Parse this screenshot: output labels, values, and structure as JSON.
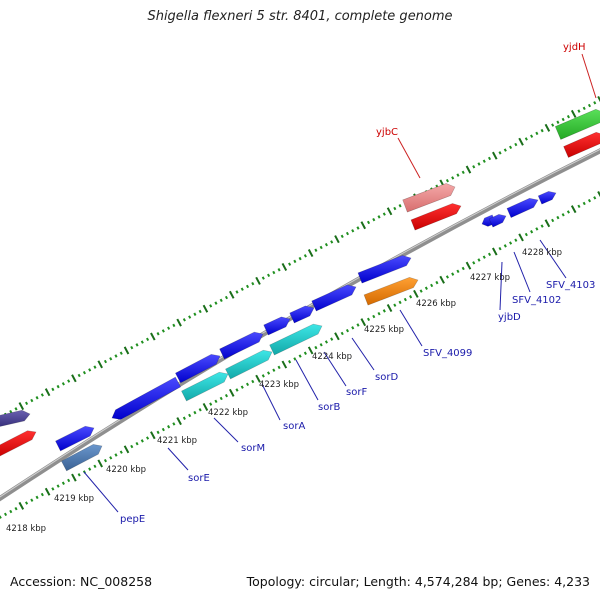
{
  "title": "Shigella flexneri 5 str. 8401, complete genome",
  "footer": {
    "accession": "Accession: NC_008258",
    "stats": "Topology: circular; Length: 4,574,284 bp; Genes: 4,233"
  },
  "colors": {
    "label_top": "#cc0000",
    "label_bottom": "#1a1aaa",
    "tick_dot": "#1f8f1f",
    "tick_major": "#1a6e1a",
    "backbone": "#8f8f8f",
    "callout_top": "#cc2222",
    "callout_bottom": "#2222aa"
  },
  "kbp_labels": [
    "4218 kbp",
    "4219 kbp",
    "4220 kbp",
    "4221 kbp",
    "4222 kbp",
    "4223 kbp",
    "4224 kbp",
    "4225 kbp",
    "4226 kbp",
    "4227 kbp",
    "4228 kbp"
  ],
  "gene_labels": {
    "top": [
      "yjbC",
      "yjdH"
    ],
    "bottom": [
      "pepE",
      "sorE",
      "sorM",
      "sorA",
      "sorB",
      "sorF",
      "sorD",
      "SFV_4099",
      "yjbD",
      "SFV_4102",
      "SFV_4103"
    ]
  }
}
